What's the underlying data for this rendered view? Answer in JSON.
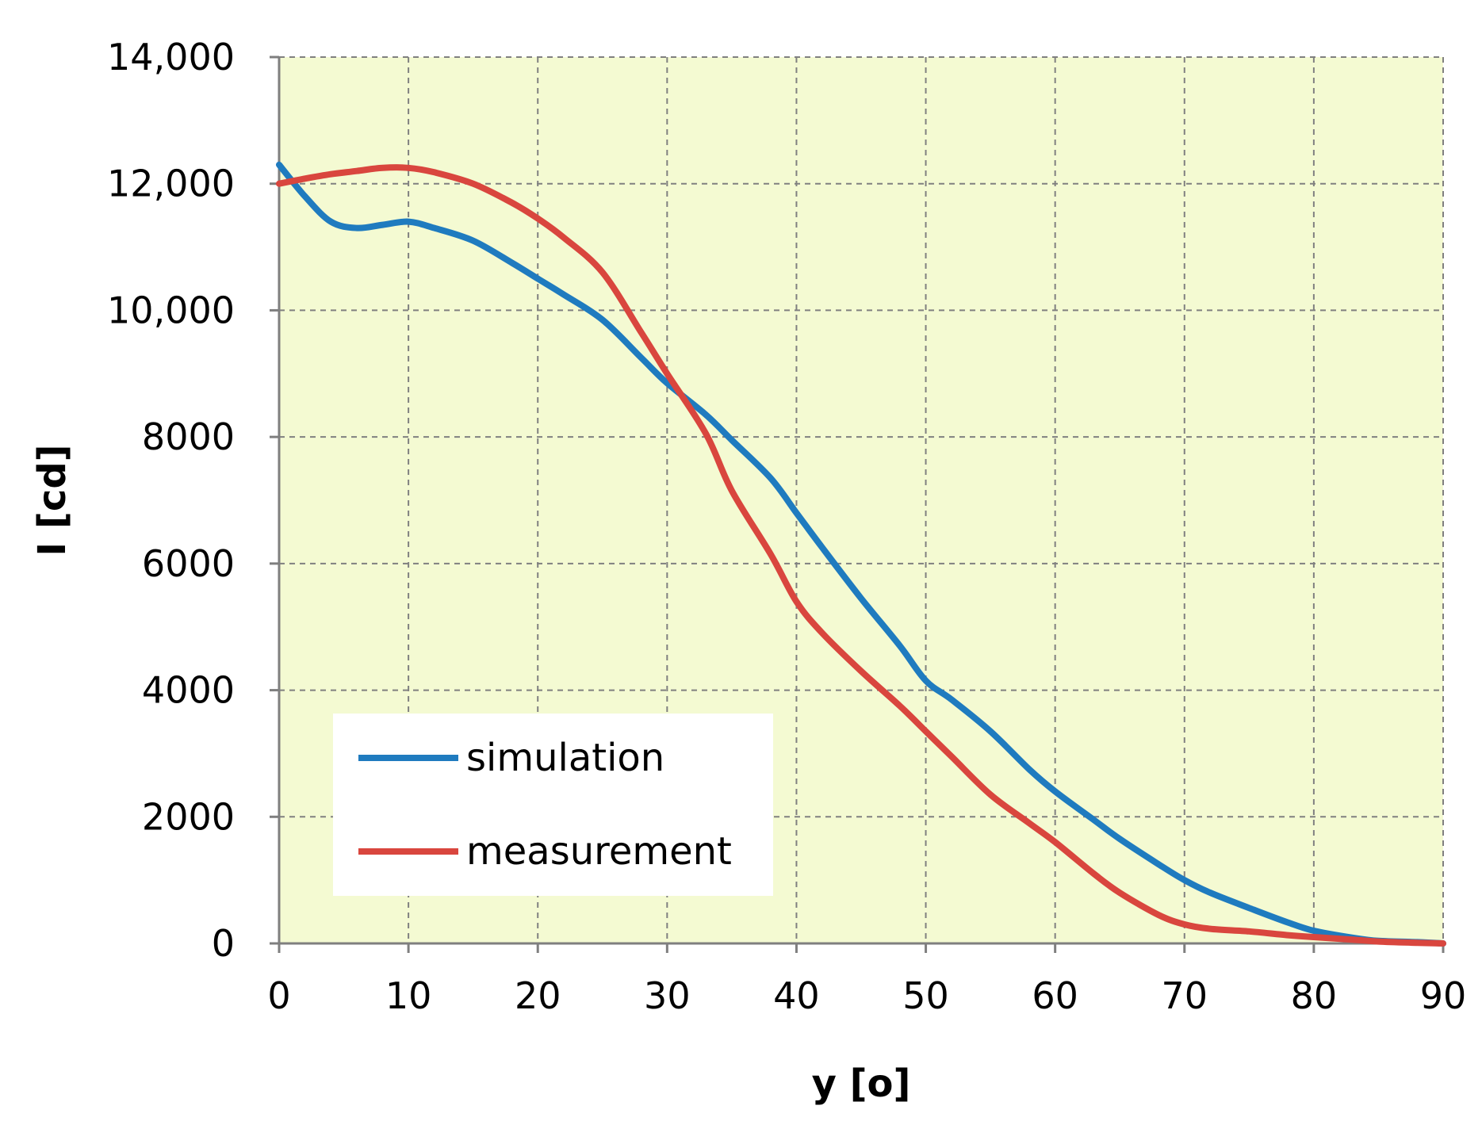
{
  "chart_data": {
    "type": "line",
    "title": "",
    "xlabel": "y [o]",
    "ylabel": "I [cd]",
    "xlim": [
      0,
      90
    ],
    "ylim": [
      0,
      14000
    ],
    "xticks": [
      0,
      10,
      20,
      30,
      40,
      50,
      60,
      70,
      80,
      90
    ],
    "xtick_labels": [
      "0",
      "10",
      "20",
      "30",
      "40",
      "50",
      "60",
      "70",
      "80",
      "90"
    ],
    "yticks": [
      0,
      2000,
      4000,
      6000,
      8000,
      10000,
      12000,
      14000
    ],
    "ytick_labels": [
      "0",
      "2000",
      "4000",
      "6000",
      "8000",
      "10,000",
      "12,000",
      "14,000"
    ],
    "grid": true,
    "grid_style": "dashed",
    "plot_background": "#f4fad2",
    "legend_position": "lower-left",
    "series": [
      {
        "name": "simulation",
        "color": "#1f7bbf",
        "x": [
          0,
          2,
          4,
          6,
          8,
          10,
          12,
          15,
          18,
          20,
          22,
          25,
          28,
          30,
          33,
          35,
          38,
          40,
          42,
          45,
          48,
          50,
          52,
          55,
          58,
          60,
          63,
          65,
          68,
          70,
          72,
          75,
          78,
          80,
          83,
          85,
          88,
          90
        ],
        "y": [
          12300,
          11800,
          11400,
          11300,
          11350,
          11400,
          11300,
          11100,
          10750,
          10500,
          10250,
          9850,
          9250,
          8850,
          8350,
          7950,
          7350,
          6800,
          6250,
          5450,
          4700,
          4150,
          3850,
          3350,
          2750,
          2400,
          1950,
          1650,
          1250,
          1000,
          800,
          560,
          330,
          200,
          90,
          40,
          20,
          0
        ]
      },
      {
        "name": "measurement",
        "color": "#d9463e",
        "x": [
          0,
          2,
          4,
          6,
          8,
          10,
          12,
          15,
          18,
          20,
          22,
          25,
          28,
          30,
          33,
          35,
          38,
          40,
          42,
          45,
          48,
          50,
          52,
          55,
          58,
          60,
          63,
          65,
          68,
          70,
          72,
          75,
          78,
          80,
          83,
          85,
          88,
          90
        ],
        "y": [
          12000,
          12080,
          12150,
          12200,
          12250,
          12250,
          12180,
          12000,
          11700,
          11450,
          11150,
          10600,
          9650,
          9000,
          8050,
          7150,
          6150,
          5400,
          4900,
          4300,
          3750,
          3350,
          2950,
          2350,
          1900,
          1600,
          1100,
          800,
          450,
          300,
          230,
          190,
          130,
          100,
          60,
          30,
          10,
          0
        ]
      }
    ]
  }
}
